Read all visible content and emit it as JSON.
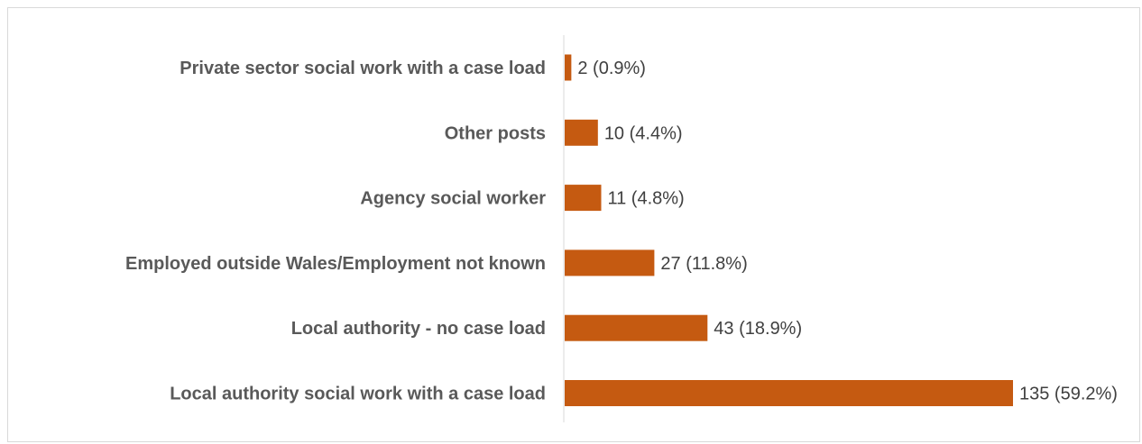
{
  "chart_data": {
    "type": "bar",
    "orientation": "horizontal",
    "categories": [
      "Private sector social work with a case load",
      "Other posts",
      "Agency social worker",
      "Employed outside Wales/Employment not known",
      "Local authority - no case load",
      "Local authority social work with a case load"
    ],
    "values": [
      2,
      10,
      11,
      27,
      43,
      135
    ],
    "data_labels": [
      "2 (0.9%)",
      "10 (4.4%)",
      "11 (4.8%)",
      "27 (11.8%)",
      "43 (18.9%)",
      "135 (59.2%)"
    ],
    "xlim": [
      0,
      135
    ],
    "grid": false,
    "legend": "none",
    "colors": {
      "bar": "#c55a11",
      "axis": "#d9d9d9",
      "category_text": "#595959",
      "value_text": "#404040"
    }
  }
}
